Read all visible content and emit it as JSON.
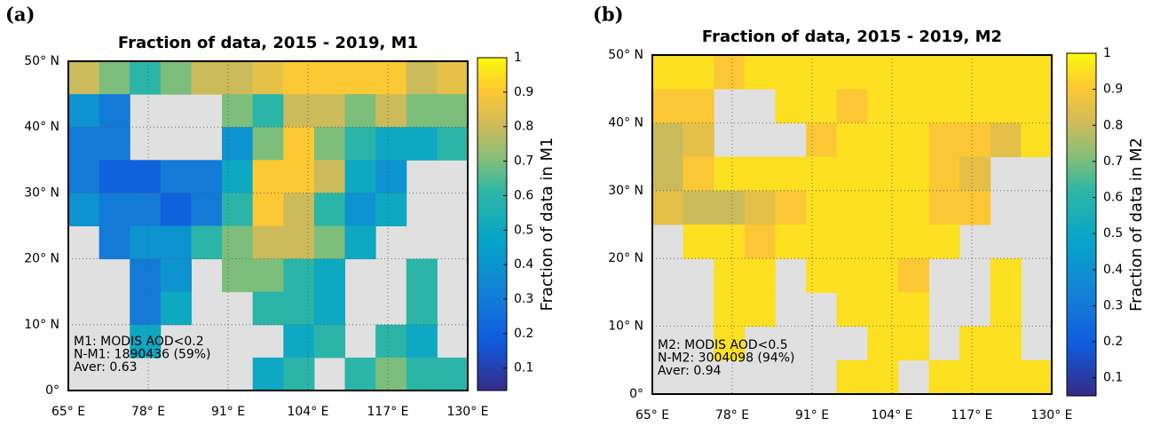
{
  "chart_data": [
    {
      "type": "heatmap",
      "panel_label": "(a)",
      "title": "Fraction of data, 2015 - 2019, M1",
      "x": [
        67.5,
        72.5,
        77.5,
        82.5,
        87.5,
        92.5,
        97.5,
        102.5,
        107.5,
        112.5,
        117.5,
        122.5,
        127.5
      ],
      "y": [
        47.5,
        42.5,
        37.5,
        32.5,
        27.5,
        22.5,
        17.5,
        12.5,
        7.5,
        2.5
      ],
      "values": [
        [
          0.8,
          0.7,
          0.6,
          0.7,
          0.8,
          0.8,
          0.85,
          0.9,
          0.9,
          0.9,
          0.9,
          0.8,
          0.85
        ],
        [
          0.4,
          0.3,
          null,
          null,
          null,
          0.7,
          0.6,
          0.8,
          0.8,
          0.7,
          0.8,
          0.7,
          0.7
        ],
        [
          0.3,
          0.3,
          null,
          null,
          null,
          0.4,
          0.7,
          0.9,
          0.7,
          0.6,
          0.5,
          0.5,
          0.6
        ],
        [
          0.3,
          0.2,
          0.2,
          0.3,
          0.3,
          0.5,
          0.9,
          0.9,
          0.8,
          0.5,
          0.4,
          null,
          null
        ],
        [
          0.4,
          0.3,
          0.3,
          0.2,
          0.3,
          0.6,
          0.9,
          0.8,
          0.6,
          0.4,
          0.5,
          null,
          null
        ],
        [
          null,
          0.3,
          0.4,
          0.4,
          0.6,
          0.7,
          0.8,
          0.8,
          0.7,
          0.5,
          null,
          null,
          null
        ],
        [
          null,
          null,
          0.3,
          0.4,
          null,
          0.7,
          0.7,
          0.6,
          0.5,
          null,
          null,
          0.6,
          null
        ],
        [
          null,
          null,
          0.3,
          0.5,
          null,
          null,
          0.6,
          0.6,
          0.5,
          null,
          null,
          0.6,
          null
        ],
        [
          null,
          null,
          0.5,
          null,
          null,
          null,
          null,
          0.5,
          0.6,
          null,
          0.6,
          0.5,
          null
        ],
        [
          null,
          null,
          null,
          null,
          null,
          null,
          0.5,
          0.6,
          null,
          0.6,
          0.7,
          0.6,
          0.6
        ]
      ],
      "xlim": [
        65,
        130
      ],
      "ylim": [
        0,
        50
      ],
      "xticks": [
        {
          "value": 65,
          "label": "65° E"
        },
        {
          "value": 78,
          "label": "78° E"
        },
        {
          "value": 91,
          "label": "91° E"
        },
        {
          "value": 104,
          "label": "104° E"
        },
        {
          "value": 117,
          "label": "117° E"
        },
        {
          "value": 130,
          "label": "130° E"
        }
      ],
      "yticks": [
        {
          "value": 0,
          "label": "0°"
        },
        {
          "value": 10,
          "label": "10° N"
        },
        {
          "value": 20,
          "label": "20° N"
        },
        {
          "value": 30,
          "label": "30° N"
        },
        {
          "value": 40,
          "label": "40° N"
        },
        {
          "value": 50,
          "label": "50° N"
        }
      ],
      "grid": true,
      "colormap": "parula",
      "clim": [
        0.035,
        1
      ],
      "cticks": [
        0.1,
        0.2,
        0.3,
        0.4,
        0.5,
        0.6,
        0.7,
        0.8,
        0.9,
        1
      ],
      "colorbar_label": "Fraction of data in M1",
      "annotations": [
        "M1: MODIS AOD<0.2",
        "N-M1: 1890436 (59%)",
        "Aver: 0.63"
      ]
    },
    {
      "type": "heatmap",
      "panel_label": "(b)",
      "title": "Fraction of data, 2015 - 2019, M2",
      "x": [
        67.5,
        72.5,
        77.5,
        82.5,
        87.5,
        92.5,
        97.5,
        102.5,
        107.5,
        112.5,
        117.5,
        122.5,
        127.5
      ],
      "y": [
        47.5,
        42.5,
        37.5,
        32.5,
        27.5,
        22.5,
        17.5,
        12.5,
        7.5,
        2.5
      ],
      "values": [
        [
          0.95,
          0.95,
          0.9,
          0.95,
          0.95,
          0.95,
          0.95,
          0.95,
          0.95,
          0.95,
          0.95,
          0.95,
          0.95
        ],
        [
          0.9,
          0.9,
          null,
          null,
          0.95,
          0.95,
          0.9,
          0.95,
          0.95,
          0.95,
          0.95,
          0.95,
          0.95
        ],
        [
          0.8,
          0.85,
          null,
          null,
          null,
          0.9,
          0.95,
          0.95,
          0.95,
          0.9,
          0.9,
          0.85,
          0.95
        ],
        [
          0.8,
          0.9,
          0.95,
          0.95,
          0.95,
          0.95,
          0.95,
          0.95,
          0.95,
          0.9,
          0.85,
          null,
          null
        ],
        [
          0.85,
          0.8,
          0.8,
          0.85,
          0.9,
          0.95,
          0.95,
          0.95,
          0.95,
          0.9,
          0.9,
          null,
          null
        ],
        [
          null,
          0.95,
          0.95,
          0.9,
          0.95,
          0.95,
          0.95,
          0.95,
          0.95,
          0.95,
          null,
          null,
          null
        ],
        [
          null,
          null,
          0.95,
          0.95,
          null,
          0.95,
          0.95,
          0.95,
          0.9,
          null,
          null,
          0.95,
          null
        ],
        [
          null,
          null,
          0.95,
          0.95,
          null,
          null,
          0.95,
          0.95,
          0.95,
          null,
          null,
          0.95,
          null
        ],
        [
          null,
          null,
          0.95,
          null,
          null,
          null,
          null,
          0.95,
          0.95,
          null,
          0.95,
          0.95,
          null
        ],
        [
          null,
          null,
          null,
          null,
          null,
          null,
          0.95,
          0.95,
          null,
          0.95,
          0.95,
          0.95,
          0.95
        ]
      ],
      "xlim": [
        65,
        130
      ],
      "ylim": [
        0,
        50
      ],
      "xticks": [
        {
          "value": 65,
          "label": "65° E"
        },
        {
          "value": 78,
          "label": "78° E"
        },
        {
          "value": 91,
          "label": "91° E"
        },
        {
          "value": 104,
          "label": "104° E"
        },
        {
          "value": 117,
          "label": "117° E"
        },
        {
          "value": 130,
          "label": "130° E"
        }
      ],
      "yticks": [
        {
          "value": 0,
          "label": "0°"
        },
        {
          "value": 10,
          "label": "10° N"
        },
        {
          "value": 20,
          "label": "20° N"
        },
        {
          "value": 30,
          "label": "30° N"
        },
        {
          "value": 40,
          "label": "40° N"
        },
        {
          "value": 50,
          "label": "50° N"
        }
      ],
      "grid": true,
      "colormap": "parula",
      "clim": [
        0.05,
        1
      ],
      "cticks": [
        0.1,
        0.2,
        0.3,
        0.4,
        0.5,
        0.6,
        0.7,
        0.8,
        0.9,
        1
      ],
      "colorbar_label": "Fraction of data in M2",
      "annotations": [
        "M2: MODIS AOD<0.5",
        "N-M2: 3004098 (94%)",
        "Aver: 0.94"
      ]
    }
  ]
}
